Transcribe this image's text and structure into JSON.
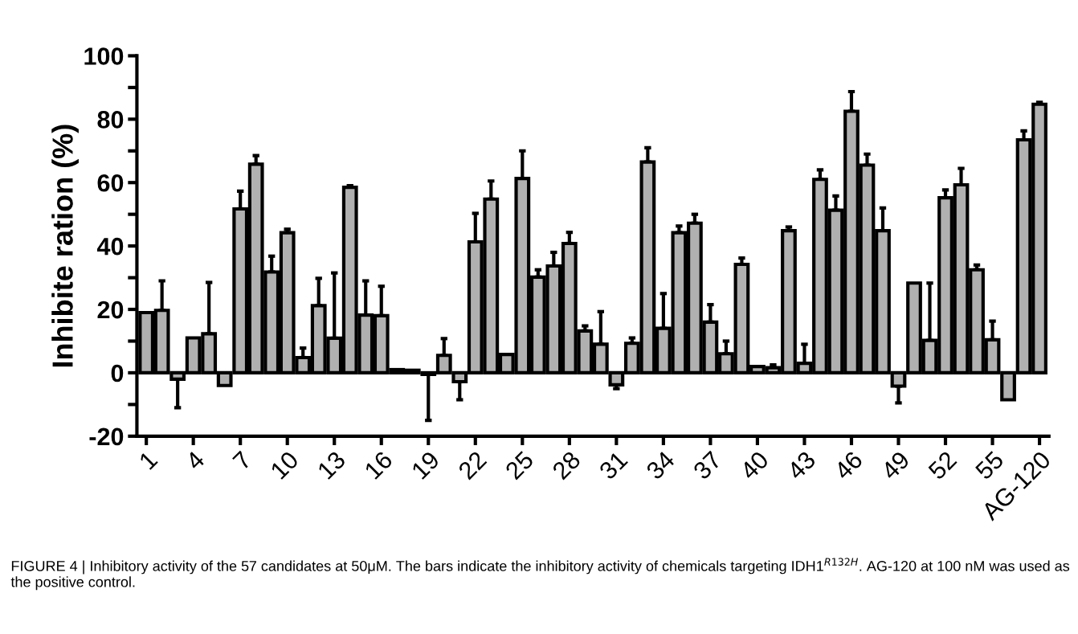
{
  "chart_data": {
    "type": "bar",
    "ylabel": "Inhibite ration (%)",
    "categories": [
      "1",
      null,
      null,
      "4",
      null,
      null,
      "7",
      null,
      null,
      "10",
      null,
      null,
      "13",
      null,
      null,
      "16",
      null,
      null,
      "19",
      null,
      null,
      "22",
      null,
      null,
      "25",
      null,
      null,
      "28",
      null,
      null,
      "31",
      null,
      null,
      "34",
      null,
      null,
      "37",
      null,
      null,
      "40",
      null,
      null,
      "43",
      null,
      null,
      "46",
      null,
      null,
      "49",
      null,
      null,
      "52",
      null,
      null,
      "55",
      null,
      null,
      "AG-120"
    ],
    "series": [
      {
        "color": "#b0b0b0",
        "values": [
          19,
          19.7,
          -2,
          11,
          12.3,
          -4,
          51.7,
          65.8,
          31.8,
          44.2,
          4.8,
          21.2,
          10.9,
          58.5,
          18.2,
          18,
          1,
          0.8,
          -0.5,
          5.5,
          -2.8,
          41.3,
          54.8,
          5.8,
          61.3,
          30.2,
          33.7,
          40.8,
          13.2,
          9,
          -3.8,
          9.3,
          66.5,
          14,
          44.2,
          47.2,
          16,
          6,
          34.2,
          2,
          1.6,
          44.8,
          3,
          61,
          51.3,
          82.5,
          65.5,
          44.8,
          -4.2,
          28.3,
          10.2,
          55.2,
          59.3,
          32.5,
          10.4,
          -8.5,
          73.5,
          84.7
        ],
        "errors": [
          null,
          [
            19.7,
            29
          ],
          [
            -11,
            -2
          ],
          null,
          [
            12.3,
            28.5
          ],
          null,
          [
            51.7,
            57.3
          ],
          [
            65.8,
            68.5
          ],
          [
            31.8,
            36.8
          ],
          [
            44.2,
            45.3
          ],
          [
            4.8,
            7.8
          ],
          [
            21.2,
            29.8
          ],
          [
            10.9,
            31.5
          ],
          [
            58.5,
            59
          ],
          [
            18.2,
            29
          ],
          [
            18,
            27.3
          ],
          null,
          null,
          [
            -15,
            -0.5
          ],
          [
            5.5,
            10.8
          ],
          [
            -8.5,
            -2.8
          ],
          [
            41.3,
            50.3
          ],
          [
            54.8,
            60.5
          ],
          null,
          [
            61.3,
            70
          ],
          [
            30.2,
            32.5
          ],
          [
            33.7,
            38
          ],
          [
            40.8,
            44.3
          ],
          [
            13.2,
            14.8
          ],
          [
            9,
            19.3
          ],
          [
            -5,
            -3.8
          ],
          [
            9.3,
            11
          ],
          [
            66.5,
            71
          ],
          [
            14,
            25
          ],
          [
            44.2,
            46.3
          ],
          [
            47.2,
            50
          ],
          [
            16,
            21.5
          ],
          [
            6,
            10
          ],
          [
            34.2,
            36.2
          ],
          null,
          [
            1.6,
            2.5
          ],
          [
            44.8,
            46
          ],
          [
            3,
            9
          ],
          [
            61,
            64
          ],
          [
            51.3,
            55.8
          ],
          [
            82.5,
            88.7
          ],
          [
            65.5,
            69
          ],
          [
            44.8,
            52
          ],
          [
            -9.5,
            -4.2
          ],
          null,
          [
            10.2,
            28.3
          ],
          [
            55.2,
            57.7
          ],
          [
            59.3,
            64.5
          ],
          [
            32.5,
            34
          ],
          [
            10.4,
            16.3
          ],
          null,
          [
            73.5,
            76.3
          ],
          [
            84.7,
            85.3
          ]
        ]
      }
    ],
    "ylim": [
      -20,
      100
    ],
    "yticks": [
      -20,
      {
        "value": -10,
        "label": null
      },
      0,
      {
        "value": 10,
        "label": null
      },
      20,
      {
        "value": 30,
        "label": null
      },
      40,
      {
        "value": 50,
        "label": null
      },
      60,
      {
        "value": 70,
        "label": null
      },
      80,
      {
        "value": 90,
        "label": null
      },
      100
    ],
    "grid": false,
    "annotations": [
      "FIGURE 4 | Inhibitory activity of the 57 candidates at 50μM. The bars indicate the inhibitory activity of chemicals targeting IDH1$^{R132H}$. AG-120 at 100 nM was used as the positive control."
    ]
  }
}
